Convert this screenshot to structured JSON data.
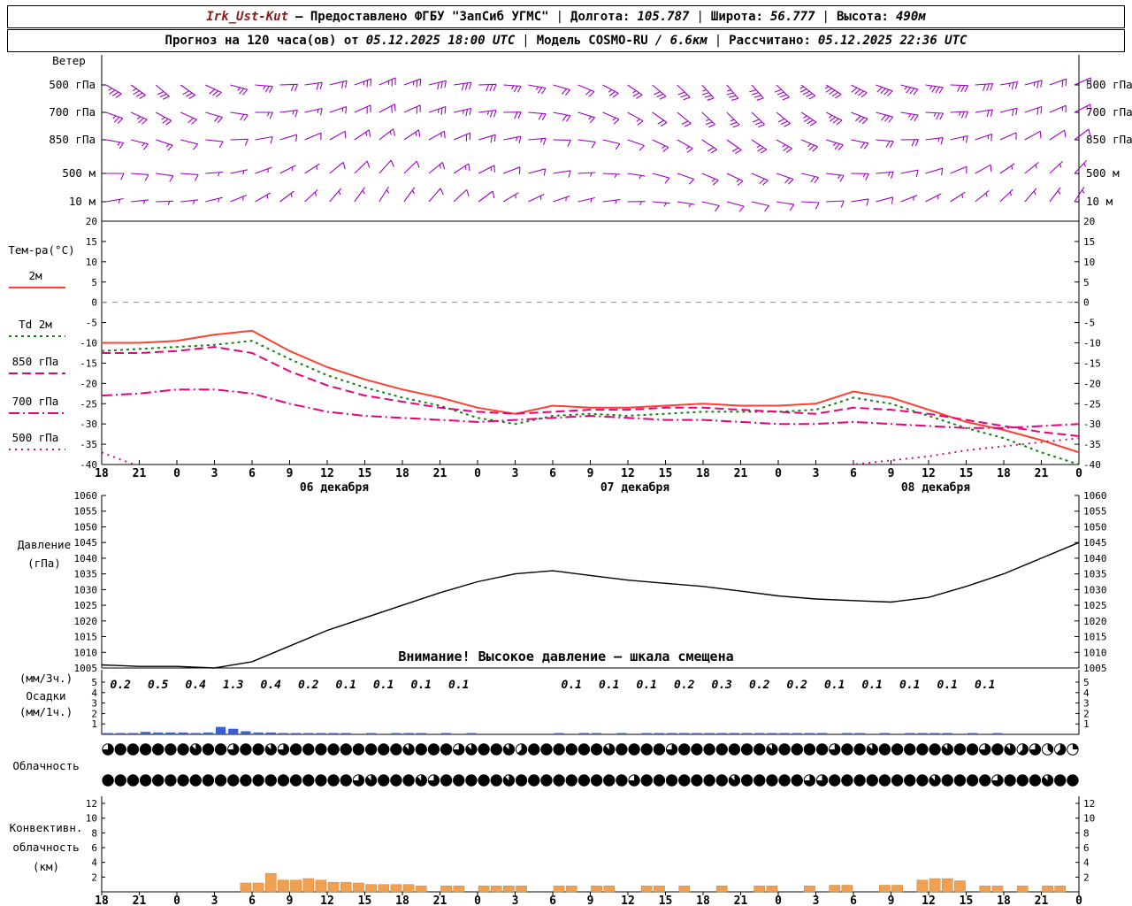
{
  "header": {
    "station": "Irk_Ust-Kut",
    "provider": "— Предоставлено ФГБУ \"ЗапСиб УГМС\"",
    "sep": "|",
    "lon_label": "Долгота:",
    "lon": "105.787",
    "lat_label": "Широта:",
    "lat": "56.777",
    "alt_label": "Высота:",
    "alt": "490м",
    "forecast_label": "Прогноз на 120 часа(ов) от",
    "forecast_time": "05.12.2025 18:00 UTC",
    "model_label": "Модель",
    "model_name": "COSMO-RU",
    "model_res": "/ 6.6км",
    "calc_label": "Рассчитано:",
    "calc_time": "05.12.2025 22:36 UTC"
  },
  "chart_data": {
    "type": "meteogram",
    "x_hours": [
      "18",
      "21",
      "0",
      "3",
      "6",
      "9",
      "12",
      "15",
      "18",
      "21",
      "0",
      "3",
      "6",
      "9",
      "12",
      "15",
      "18",
      "21",
      "0",
      "3",
      "6",
      "9",
      "12",
      "15",
      "18",
      "21",
      "0"
    ],
    "x_dates": [
      "06 декабря",
      "07 декабря",
      "08 декабря"
    ],
    "date_tick_index": [
      6,
      14,
      22
    ],
    "panels": {
      "wind": {
        "title": "Ветер",
        "barb_color": "#a000c8",
        "levels": [
          {
            "label": "500 гПа",
            "y": 96,
            "dir": [
              300,
              305,
              310,
              305,
              295,
              285,
              275,
              268,
              262,
              256,
              250,
              246,
              250,
              256,
              262,
              268,
              274,
              280,
              286,
              292,
              298,
              304,
              310,
              314,
              318,
              320,
              318,
              314,
              308,
              302,
              296,
              290,
              284,
              278,
              272,
              266,
              260,
              255,
              250,
              246
            ],
            "spd": [
              35,
              35,
              30,
              30,
              30,
              25,
              25,
              20,
              20,
              20,
              25,
              25,
              25,
              30,
              30,
              30,
              25,
              25,
              20,
              20,
              25,
              25,
              30,
              30,
              35,
              35,
              40,
              40,
              45,
              45,
              40,
              40,
              35,
              35,
              30,
              30,
              25,
              25,
              20,
              20
            ]
          },
          {
            "label": "700 гПа",
            "y": 127,
            "dir": [
              290,
              294,
              298,
              294,
              286,
              278,
              270,
              263,
              257,
              251,
              246,
              242,
              246,
              251,
              257,
              263,
              269,
              275,
              281,
              287,
              293,
              299,
              305,
              309,
              313,
              315,
              313,
              309,
              303,
              297,
              291,
              285,
              279,
              273,
              267,
              261,
              256,
              251,
              247,
              243
            ],
            "spd": [
              25,
              25,
              25,
              20,
              20,
              20,
              15,
              15,
              15,
              15,
              20,
              20,
              20,
              25,
              25,
              25,
              20,
              20,
              20,
              15,
              15,
              15,
              20,
              20,
              25,
              25,
              30,
              30,
              35,
              35,
              30,
              30,
              25,
              25,
              25,
              20,
              20,
              20,
              15,
              15
            ]
          },
          {
            "label": "850 гПа",
            "y": 158,
            "dir": [
              280,
              284,
              288,
              284,
              276,
              268,
              260,
              253,
              247,
              241,
              236,
              232,
              236,
              241,
              247,
              253,
              259,
              265,
              271,
              277,
              283,
              289,
              295,
              299,
              303,
              305,
              303,
              299,
              293,
              287,
              281,
              275,
              269,
              263,
              257,
              251,
              246,
              241,
              237,
              233
            ],
            "spd": [
              15,
              15,
              15,
              10,
              10,
              10,
              10,
              10,
              10,
              10,
              15,
              15,
              15,
              15,
              20,
              20,
              15,
              15,
              10,
              10,
              10,
              10,
              15,
              15,
              20,
              20,
              25,
              25,
              25,
              25,
              20,
              20,
              20,
              15,
              15,
              15,
              10,
              10,
              10,
              10
            ]
          },
          {
            "label": "500 м",
            "y": 196,
            "dir": [
              270,
              274,
              278,
              274,
              266,
              258,
              250,
              243,
              237,
              231,
              226,
              222,
              226,
              231,
              237,
              243,
              249,
              255,
              261,
              267,
              273,
              279,
              285,
              289,
              293,
              295,
              293,
              289,
              283,
              277,
              271,
              265,
              259,
              253,
              247,
              241,
              236,
              231,
              227,
              223
            ],
            "spd": [
              10,
              10,
              10,
              10,
              5,
              5,
              5,
              5,
              5,
              10,
              10,
              10,
              10,
              15,
              15,
              15,
              10,
              10,
              10,
              5,
              5,
              5,
              10,
              10,
              15,
              15,
              20,
              20,
              20,
              15,
              15,
              15,
              10,
              10,
              10,
              10,
              5,
              5,
              5,
              5
            ]
          },
          {
            "label": "10 м",
            "y": 228,
            "dir": [
              260,
              264,
              268,
              264,
              256,
              248,
              240,
              233,
              227,
              221,
              216,
              212,
              216,
              221,
              227,
              233,
              239,
              245,
              251,
              257,
              263,
              269,
              275,
              279,
              283,
              285,
              283,
              279,
              273,
              267,
              261,
              255,
              249,
              243,
              237,
              231,
              226,
              221,
              217,
              213
            ],
            "spd": [
              5,
              5,
              5,
              5,
              5,
              5,
              3,
              3,
              3,
              5,
              5,
              5,
              5,
              10,
              10,
              10,
              5,
              5,
              5,
              3,
              3,
              3,
              5,
              5,
              10,
              10,
              10,
              10,
              10,
              10,
              10,
              10,
              5,
              5,
              5,
              5,
              3,
              3,
              3,
              3
            ]
          }
        ]
      },
      "temperature": {
        "title": "Тем-ра(°C)",
        "ylim": [
          -40,
          20
        ],
        "yticks": [
          20,
          15,
          10,
          5,
          0,
          -5,
          -10,
          -15,
          -20,
          -25,
          -30,
          -35,
          -40
        ],
        "zero_line_color": "#6f86ff",
        "series": [
          {
            "name": "2м",
            "color": "#ff4030",
            "dash": "none",
            "values": [
              -10,
              -10,
              -9.5,
              -8,
              -7,
              -12,
              -16,
              -19,
              -21.5,
              -23.5,
              -26,
              -27.5,
              -25.5,
              -26,
              -26,
              -25.5,
              -25,
              -25.5,
              -25.5,
              -25,
              -22,
              -23.5,
              -26.5,
              -29.5,
              -31.5,
              -34,
              -37
            ]
          },
          {
            "name": "Td 2м",
            "color": "#138013",
            "dash": "3 4",
            "values": [
              -12,
              -11.5,
              -11,
              -10.5,
              -9.5,
              -14,
              -18,
              -21,
              -23.5,
              -25.5,
              -28.5,
              -30,
              -28,
              -27.5,
              -28,
              -27.5,
              -27,
              -27,
              -27,
              -26.5,
              -23.5,
              -25,
              -28,
              -31,
              -33.5,
              -37,
              -40
            ]
          },
          {
            "name": "850 гПа",
            "color": "#e8007e",
            "dash": "10 5",
            "values": [
              -12.5,
              -12.5,
              -12,
              -11,
              -12.5,
              -17,
              -20.5,
              -23,
              -24.5,
              -26,
              -27,
              -27.5,
              -27,
              -26.5,
              -26.5,
              -26,
              -26,
              -26.5,
              -27,
              -27.5,
              -26,
              -26.5,
              -27.5,
              -29,
              -30.5,
              -32,
              -33
            ]
          },
          {
            "name": "700 гПа",
            "color": "#e8007e",
            "dash": "12 4 2 4",
            "values": [
              -23,
              -22.5,
              -21.5,
              -21.5,
              -22.5,
              -25,
              -27,
              -28,
              -28.5,
              -29,
              -29.5,
              -29,
              -28.5,
              -28,
              -28.5,
              -29,
              -29,
              -29.5,
              -30,
              -30,
              -29.5,
              -30,
              -30.5,
              -31,
              -31,
              -30.5,
              -30
            ]
          },
          {
            "name": "500 гПа",
            "color": "#d01078",
            "dash": "2 5",
            "values": [
              -37,
              -40.5,
              -44,
              -46,
              -46,
              -45,
              -44.5,
              -44,
              -43.5,
              -43,
              -42.5,
              -42,
              -42,
              -42,
              -42,
              -42,
              -42,
              -42,
              -41.5,
              -41,
              -40,
              -39,
              -38,
              -36.5,
              -35.5,
              -34.5,
              -33.5
            ]
          }
        ]
      },
      "pressure": {
        "title": "Давление",
        "units": "(гПа)",
        "ylim": [
          1005,
          1060
        ],
        "yticks": [
          1060,
          1055,
          1050,
          1045,
          1040,
          1035,
          1030,
          1025,
          1020,
          1015,
          1010,
          1005
        ],
        "color": "#000000",
        "warning": "Внимание! Высокое давление — шкала смещена",
        "values": [
          1006,
          1005.5,
          1005.5,
          1005,
          1007,
          1012,
          1017,
          1021,
          1025,
          1029,
          1032.5,
          1035,
          1036,
          1034.5,
          1033,
          1032,
          1031,
          1029.5,
          1028,
          1027,
          1026.5,
          1026,
          1027.5,
          1031,
          1035,
          1040,
          1045
        ]
      },
      "precipitation": {
        "labels": [
          "(мм/3ч.)",
          "Осадки",
          "(мм/1ч.)"
        ],
        "yticks": [
          5,
          4,
          3,
          2,
          1
        ],
        "bar_color": "#3a5fd0",
        "amounts_3h": [
          "0.2",
          "0.5",
          "0.4",
          "1.3",
          "0.4",
          "0.2",
          "0.1",
          "0.1",
          "0.1",
          "0.1",
          "",
          "",
          "0.1",
          "0.1",
          "0.1",
          "0.2",
          "0.3",
          "0.2",
          "0.2",
          "0.1",
          "0.1",
          "0.1",
          "0.1",
          "0.1",
          "",
          ""
        ],
        "hourly": [
          0.05,
          0.1,
          0.05,
          0.2,
          0.15,
          0.15,
          0.15,
          0.1,
          0.15,
          0.6,
          0.45,
          0.25,
          0.15,
          0.15,
          0.1,
          0.1,
          0.05,
          0.05,
          0.05,
          0.05,
          0,
          0.05,
          0,
          0.05,
          0.05,
          0.05,
          0,
          0.05,
          0,
          0.05,
          0,
          0,
          0,
          0,
          0,
          0,
          0.05,
          0,
          0.05,
          0.05,
          0,
          0.05,
          0,
          0.05,
          0.05,
          0.1,
          0.05,
          0.05,
          0.1,
          0.1,
          0.1,
          0.1,
          0.05,
          0.05,
          0.1,
          0.05,
          0.05,
          0.05,
          0,
          0.05,
          0.05,
          0,
          0.05,
          0,
          0.05,
          0.05,
          0.05,
          0.05,
          0,
          0.05,
          0,
          0.05,
          0,
          0,
          0,
          0,
          0,
          0
        ]
      },
      "cloudiness": {
        "label": "Облачность",
        "rows": [
          [
            6,
            8,
            8,
            8,
            8,
            8,
            8,
            7,
            8,
            8,
            6,
            8,
            8,
            7,
            6,
            8,
            8,
            8,
            8,
            8,
            8,
            8,
            8,
            8,
            7,
            8,
            8,
            8,
            6,
            7,
            8,
            8,
            7,
            5,
            8,
            8,
            8,
            8,
            8,
            8,
            7,
            8,
            8,
            8,
            8,
            6,
            8,
            8,
            8,
            8,
            8,
            8,
            8,
            7,
            8,
            8,
            8,
            8,
            6,
            8,
            8,
            7,
            8,
            8,
            8,
            8,
            8,
            7,
            8,
            8,
            6,
            8,
            7,
            5,
            6,
            3,
            5,
            2
          ],
          [
            8,
            8,
            8,
            8,
            8,
            8,
            8,
            8,
            8,
            8,
            8,
            8,
            8,
            8,
            8,
            8,
            8,
            8,
            8,
            8,
            6,
            7,
            8,
            8,
            8,
            7,
            6,
            8,
            8,
            8,
            8,
            8,
            7,
            8,
            8,
            8,
            8,
            8,
            8,
            8,
            8,
            8,
            6,
            8,
            8,
            8,
            8,
            8,
            8,
            8,
            7,
            8,
            8,
            8,
            8,
            8,
            6,
            6,
            8,
            8,
            8,
            8,
            8,
            8,
            8,
            8,
            7,
            8,
            8,
            8,
            8,
            6,
            8,
            8,
            8,
            7,
            8,
            8
          ]
        ]
      },
      "convective": {
        "labels": [
          "Конвективн.",
          "облачность",
          "(км)"
        ],
        "yticks": [
          12,
          10,
          8,
          6,
          4,
          2
        ],
        "bar_color": "#f0a050",
        "values_km": [
          0,
          0,
          0,
          0,
          0,
          0,
          0,
          0,
          0,
          0,
          0,
          1.2,
          1.2,
          2.5,
          1.6,
          1.6,
          1.8,
          1.6,
          1.3,
          1.3,
          1.2,
          1,
          1,
          1,
          1,
          0.8,
          0,
          0.8,
          0.8,
          0,
          0.8,
          0.8,
          0.8,
          0.8,
          0,
          0,
          0.8,
          0.8,
          0,
          0.8,
          0.8,
          0,
          0,
          0.8,
          0.8,
          0,
          0.8,
          0,
          0,
          0.8,
          0,
          0,
          0.8,
          0.8,
          0,
          0,
          0.8,
          0,
          0.9,
          0.9,
          0,
          0,
          0.9,
          0.9,
          0,
          1.6,
          1.8,
          1.8,
          1.5,
          0,
          0.8,
          0.8,
          0,
          0.8,
          0,
          0.8,
          0.8,
          0
        ]
      }
    }
  }
}
